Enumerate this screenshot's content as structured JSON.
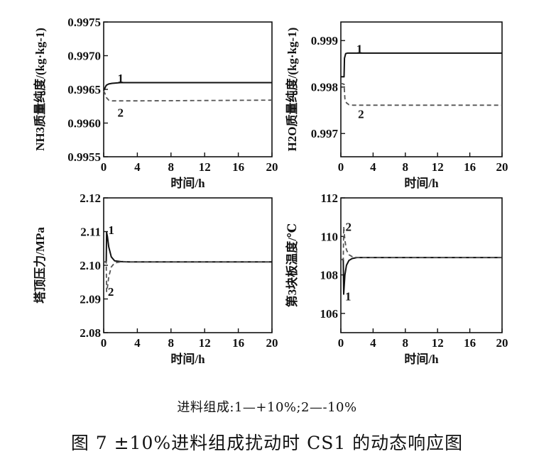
{
  "chart_data": [
    {
      "type": "line",
      "xlabel": "时间/h",
      "ylabel": "NH3质量纯度/(kg·kg-1)",
      "xlim": [
        0,
        20
      ],
      "ylim": [
        0.9955,
        0.9975
      ],
      "xticks": [
        "0",
        "4",
        "8",
        "12",
        "16",
        "20"
      ],
      "yticks": [
        "0.9955",
        "0.9960",
        "0.9965",
        "0.9970",
        "0.9975"
      ],
      "series": [
        {
          "name": "1",
          "x": [
            0,
            0.15,
            0.3,
            0.6,
            1.0,
            2.0,
            20
          ],
          "y": [
            0.99648,
            0.99652,
            0.99656,
            0.99658,
            0.99659,
            0.9966,
            0.9966
          ]
        },
        {
          "name": "2",
          "x": [
            0,
            0.15,
            0.3,
            0.6,
            1.0,
            2.0,
            4.0,
            20
          ],
          "y": [
            0.99648,
            0.99644,
            0.99638,
            0.99634,
            0.99633,
            0.99633,
            0.99633,
            0.99634
          ]
        }
      ],
      "line_labels": [
        {
          "text": "1",
          "x": 2.0,
          "y": 0.99667
        },
        {
          "text": "2",
          "x": 2.0,
          "y": 0.99616
        }
      ]
    },
    {
      "type": "line",
      "xlabel": "时间/h",
      "ylabel": "H2O质量纯度/(kg·kg-1)",
      "xlim": [
        0,
        20
      ],
      "ylim": [
        0.9965,
        0.9994
      ],
      "xticks": [
        "0",
        "4",
        "8",
        "12",
        "16",
        "20"
      ],
      "yticks": [
        "0.997",
        "0.998",
        "0.999"
      ],
      "yticks_at": [
        0.997,
        0.998,
        0.999
      ],
      "series": [
        {
          "name": "1",
          "x": [
            0,
            0.4,
            0.45,
            0.6,
            0.8,
            1.2,
            20
          ],
          "y": [
            0.99822,
            0.99822,
            0.99862,
            0.99872,
            0.99873,
            0.99873,
            0.99873
          ]
        },
        {
          "name": "2",
          "x": [
            0,
            0.4,
            0.5,
            0.7,
            1.0,
            1.5,
            20
          ],
          "y": [
            0.99808,
            0.99806,
            0.99775,
            0.99766,
            0.99762,
            0.99761,
            0.99761
          ]
        }
      ],
      "line_labels": [
        {
          "text": "1",
          "x": 2.3,
          "y": 0.99883
        },
        {
          "text": "2",
          "x": 2.5,
          "y": 0.99742
        }
      ]
    },
    {
      "type": "line",
      "xlabel": "时间/h",
      "ylabel": "塔顶压力/MPa",
      "xlim": [
        0,
        20
      ],
      "ylim": [
        2.08,
        2.12
      ],
      "xticks": [
        "0",
        "4",
        "8",
        "12",
        "16",
        "20"
      ],
      "yticks": [
        "2.08",
        "2.09",
        "2.10",
        "2.11",
        "2.12"
      ],
      "series": [
        {
          "name": "1",
          "x": [
            0,
            0.3,
            0.35,
            0.45,
            0.6,
            0.9,
            1.3,
            2.0,
            3.0,
            20
          ],
          "y": [
            2.101,
            2.101,
            2.1098,
            2.1085,
            2.1055,
            2.1025,
            2.1013,
            2.1011,
            2.101,
            2.101
          ]
        },
        {
          "name": "2",
          "x": [
            0,
            0.3,
            0.35,
            0.45,
            0.6,
            0.9,
            1.3,
            2.0,
            3.0,
            20
          ],
          "y": [
            2.101,
            2.101,
            2.0922,
            2.0935,
            2.0965,
            2.0995,
            2.1007,
            2.101,
            2.101,
            2.101
          ]
        }
      ],
      "line_labels": [
        {
          "text": "1",
          "x": 0.9,
          "y": 2.1105
        },
        {
          "text": "2",
          "x": 0.85,
          "y": 2.0922
        }
      ]
    },
    {
      "type": "line",
      "xlabel": "时间/h",
      "ylabel": "第3块板温度/℃",
      "xlim": [
        0,
        20
      ],
      "ylim": [
        105,
        112
      ],
      "xticks": [
        "0",
        "4",
        "8",
        "12",
        "16",
        "20"
      ],
      "yticks": [
        "106",
        "108",
        "110",
        "112"
      ],
      "yticks_at": [
        106,
        108,
        110,
        112
      ],
      "series": [
        {
          "name": "1",
          "x": [
            0,
            0.3,
            0.35,
            0.5,
            0.7,
            1.0,
            1.4,
            2.0,
            20
          ],
          "y": [
            108.8,
            108.8,
            107.0,
            108.0,
            108.5,
            108.75,
            108.85,
            108.9,
            108.9
          ]
        },
        {
          "name": "2",
          "x": [
            0,
            0.3,
            0.35,
            0.5,
            0.7,
            1.0,
            1.4,
            2.0,
            20
          ],
          "y": [
            108.8,
            108.8,
            110.5,
            109.8,
            109.3,
            109.05,
            108.95,
            108.9,
            108.9
          ]
        }
      ],
      "line_labels": [
        {
          "text": "1",
          "x": 0.9,
          "y": 106.9
        },
        {
          "text": "2",
          "x": 0.95,
          "y": 110.5
        }
      ]
    }
  ],
  "legend_text": "进料组成:1—+10%;2—-10%",
  "caption": "图 7   ±10%进料组成扰动时 CS1 的动态响应图"
}
